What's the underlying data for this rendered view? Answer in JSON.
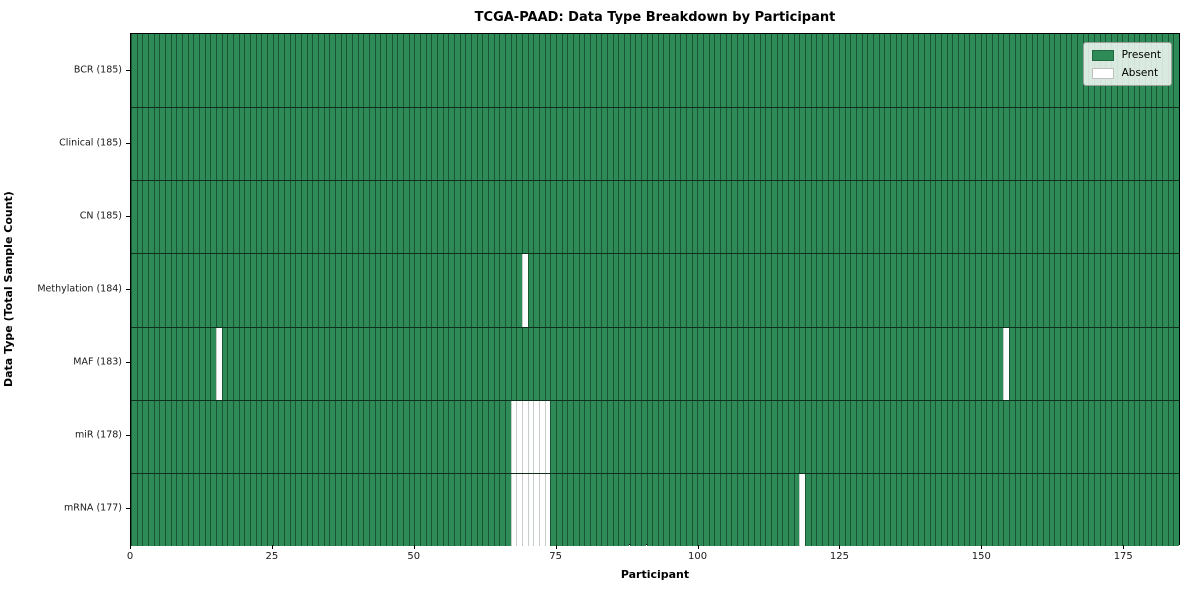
{
  "chart_data": {
    "type": "heatmap",
    "title": "TCGA-PAAD: Data Type Breakdown by Participant",
    "xlabel": "Participant",
    "ylabel": "Data Type (Total Sample Count)",
    "n_participants": 185,
    "xlim": [
      0,
      185
    ],
    "x_ticks": [
      0,
      25,
      50,
      75,
      100,
      125,
      150,
      175
    ],
    "legend_position": "upper right",
    "grid": "cell borders",
    "colors": {
      "present": "#2e8b57",
      "absent": "#ffffff",
      "cell_border_on_present": "rgba(10,40,25,0.55)",
      "cell_border_on_absent": "#c9cdc9",
      "row_separator": "rgba(0,0,0,0.65)"
    },
    "legend": [
      {
        "label": "Present",
        "color": "#2e8b57"
      },
      {
        "label": "Absent",
        "color": "#ffffff"
      }
    ],
    "rows": [
      {
        "label": "BCR (185)",
        "data_type": "BCR",
        "present_count": 185,
        "absent_count": 0,
        "absent_participants": []
      },
      {
        "label": "Clinical (185)",
        "data_type": "Clinical",
        "present_count": 185,
        "absent_count": 0,
        "absent_participants": []
      },
      {
        "label": "CN (185)",
        "data_type": "CN",
        "present_count": 185,
        "absent_count": 0,
        "absent_participants": []
      },
      {
        "label": "Methylation (184)",
        "data_type": "Methylation",
        "present_count": 184,
        "absent_count": 1,
        "absent_participants": [
          69
        ]
      },
      {
        "label": "MAF (183)",
        "data_type": "MAF",
        "present_count": 183,
        "absent_count": 2,
        "absent_participants": [
          15,
          154
        ]
      },
      {
        "label": "miR (178)",
        "data_type": "miR",
        "present_count": 178,
        "absent_count": 7,
        "absent_participants": [
          67,
          68,
          69,
          70,
          71,
          72,
          73
        ]
      },
      {
        "label": "mRNA (177)",
        "data_type": "mRNA",
        "present_count": 177,
        "absent_count": 8,
        "absent_participants": [
          67,
          68,
          69,
          70,
          71,
          72,
          73,
          118
        ]
      }
    ]
  }
}
